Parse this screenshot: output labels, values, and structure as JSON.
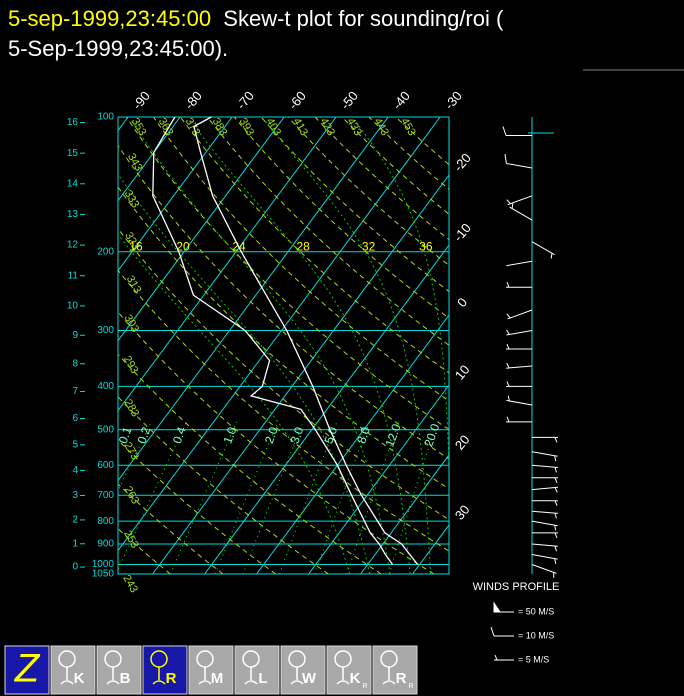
{
  "chart_data": {
    "type": "skew-t",
    "date": "5-sep-1999,23:45:00",
    "title": "Skew-t plot for sounding/roi (",
    "subtitle": "5-Sep-1999,23:45:00).",
    "log_y": true,
    "ylim": [
      100,
      1050
    ],
    "yticks": [
      100,
      200,
      300,
      400,
      500,
      600,
      700,
      800,
      900,
      1000,
      1050
    ],
    "grid": true,
    "axis_color": "#00dcdc",
    "zlim": [
      0,
      16
    ],
    "zticks": [
      0,
      1,
      2,
      3,
      4,
      5,
      6,
      7,
      8,
      9,
      10,
      11,
      12,
      13,
      14,
      15,
      16
    ],
    "isotherms": {
      "values": [
        -90,
        -80,
        -70,
        -60,
        -50,
        -40,
        -30,
        -20,
        -10,
        0,
        10,
        20,
        30
      ],
      "color": "#00dcdc",
      "label_color": "#ffffff"
    },
    "dry_adiabats": {
      "values": [
        243,
        253,
        263,
        273,
        283,
        293,
        303,
        313,
        323,
        333,
        343,
        353,
        363,
        373,
        383,
        393,
        403,
        413,
        423,
        433,
        443,
        453
      ],
      "color": "#a8dc14"
    },
    "moist_adiabats": {
      "values": [
        16,
        20,
        24,
        28,
        32,
        36
      ],
      "color": "#00c800",
      "label_color": "#ffff00"
    },
    "mixing_ratios": {
      "values": [
        0.1,
        0.2,
        0.4,
        {
          "value": 1,
          "label": "1.0"
        },
        {
          "value": 2,
          "label": "2.0"
        },
        {
          "value": 3,
          "label": "3.0"
        },
        {
          "value": 5,
          "label": "5.0"
        },
        {
          "value": 8,
          "label": "8.0"
        },
        {
          "value": 12,
          "label": "12.0"
        },
        {
          "value": 20,
          "label": "20.0"
        }
      ],
      "color": "#00ff00",
      "label_color": "#80ffc8"
    },
    "series": [
      {
        "color": "#ffffff",
        "pressure": [
          1000,
          900,
          850,
          700,
          600,
          500,
          400,
          300,
          250,
          200,
          150,
          120,
          105,
          100
        ],
        "values": [
          29.6,
          23.6,
          18.8,
          8.9,
          1.7,
          -6.5,
          -16,
          -29,
          -38,
          -49,
          -62.5,
          -71,
          -76,
          -74
        ]
      },
      {
        "color": "#ffffff",
        "pressure": [
          1000,
          950,
          900,
          850,
          700,
          600,
          500,
          450,
          420,
          400,
          350,
          300,
          250,
          200,
          150,
          120,
          100
        ],
        "values": [
          24.8,
          22,
          19.3,
          16,
          7,
          0,
          -9.3,
          -15,
          -26.5,
          -25.7,
          -28,
          -37,
          -52,
          -61,
          -74,
          -80,
          -81
        ]
      }
    ],
    "winds": {
      "title": "WINDS PROFILE",
      "color": "#ffffff",
      "pressure": [
        110,
        130,
        150,
        170,
        190,
        210,
        240,
        270,
        300,
        330,
        360,
        400,
        440,
        480,
        520,
        560,
        600,
        640,
        680,
        720,
        760,
        800,
        850,
        900,
        950,
        1000
      ],
      "speed": [
        12,
        10,
        8,
        6,
        5,
        4,
        5,
        6,
        7,
        8,
        8,
        9,
        8,
        7,
        6,
        5,
        6,
        7,
        8,
        9,
        9,
        8,
        8,
        7,
        6,
        5
      ],
      "direction": [
        270,
        280,
        250,
        300,
        120,
        260,
        270,
        250,
        260,
        270,
        265,
        270,
        280,
        270,
        90,
        100,
        95,
        90,
        85,
        90,
        95,
        100,
        90,
        95,
        100,
        110
      ],
      "legend": [
        {
          "value": 50,
          "label": "= 50 M/S"
        },
        {
          "value": 10,
          "label": "= 10 M/S"
        },
        {
          "value": 5,
          "label": "= 5 M/S"
        }
      ]
    }
  },
  "toolbar": {
    "selected": 3,
    "buttons": [
      {
        "label": "Z"
      },
      {
        "label": "K"
      },
      {
        "label": "B"
      },
      {
        "label": "R"
      },
      {
        "label": "M"
      },
      {
        "label": "L"
      },
      {
        "label": "W"
      },
      {
        "label": "K",
        "sub": "R"
      },
      {
        "label": "R",
        "sub": "R"
      }
    ]
  }
}
